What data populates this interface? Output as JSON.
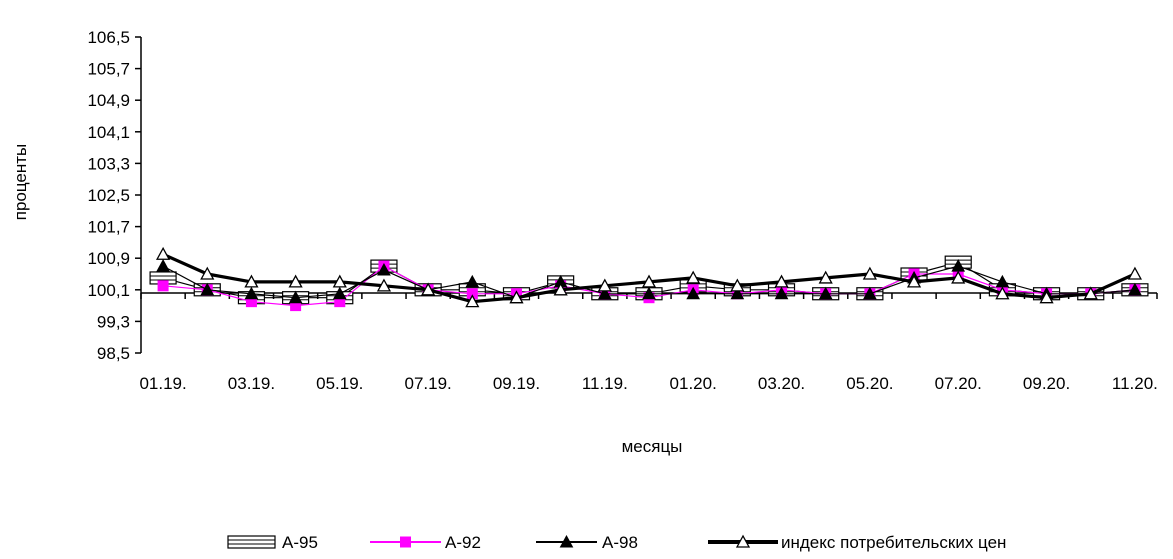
{
  "chart_data": {
    "type": "line",
    "title": "",
    "xlabel": "месяцы",
    "ylabel": "проценты",
    "ylim": [
      98.5,
      106.5
    ],
    "yticks": [
      "106,5",
      "105,7",
      "104,9",
      "104,1",
      "103,3",
      "102,5",
      "101,7",
      "100,9",
      "100,1",
      "99,3",
      "98,5"
    ],
    "x_tick_labels": [
      "01.19.",
      "03.19.",
      "05.19.",
      "07.19.",
      "09.19.",
      "11.19.",
      "01.20.",
      "03.20.",
      "05.20.",
      "07.20.",
      "09.20.",
      "11.20."
    ],
    "categories": [
      "01.19.",
      "02.19.",
      "03.19.",
      "04.19.",
      "05.19.",
      "06.19.",
      "07.19.",
      "08.19.",
      "09.19.",
      "10.19.",
      "11.19.",
      "12.19.",
      "01.20.",
      "02.20.",
      "03.20.",
      "04.20.",
      "05.20.",
      "06.20.",
      "07.20.",
      "08.20.",
      "09.20.",
      "10.20.",
      "11.20."
    ],
    "series": [
      {
        "name": "А-95",
        "color": "#000000",
        "marker": "square-hollow",
        "values": [
          100.4,
          100.1,
          99.9,
          99.9,
          99.9,
          100.7,
          100.1,
          100.1,
          100.0,
          100.3,
          100.0,
          100.0,
          100.2,
          100.1,
          100.1,
          100.0,
          100.0,
          100.5,
          100.8,
          100.1,
          100.0,
          100.0,
          100.1
        ]
      },
      {
        "name": "А-92",
        "color": "#ff00ff",
        "marker": "square-filled",
        "values": [
          100.2,
          100.1,
          99.8,
          99.7,
          99.8,
          100.7,
          100.1,
          100.0,
          100.0,
          100.2,
          100.0,
          99.9,
          100.1,
          100.0,
          100.1,
          100.0,
          100.0,
          100.5,
          100.5,
          100.1,
          100.0,
          100.0,
          100.1
        ]
      },
      {
        "name": "А-98",
        "color": "#000000",
        "marker": "triangle-filled",
        "values": [
          100.7,
          100.1,
          100.0,
          99.9,
          100.0,
          100.6,
          100.1,
          100.3,
          99.9,
          100.3,
          100.0,
          100.0,
          100.0,
          100.0,
          100.0,
          100.0,
          100.0,
          100.4,
          100.7,
          100.3,
          100.0,
          100.0,
          100.1
        ]
      },
      {
        "name": "индекс потребительских цен",
        "color": "#000000",
        "marker": "triangle-hollow",
        "values": [
          101.0,
          100.5,
          100.3,
          100.3,
          100.3,
          100.2,
          100.1,
          99.8,
          99.9,
          100.1,
          100.2,
          100.3,
          100.4,
          100.2,
          100.3,
          100.4,
          100.5,
          100.3,
          100.4,
          100.0,
          99.9,
          100.0,
          100.5
        ]
      }
    ],
    "legend_position": "bottom",
    "grid": false
  }
}
